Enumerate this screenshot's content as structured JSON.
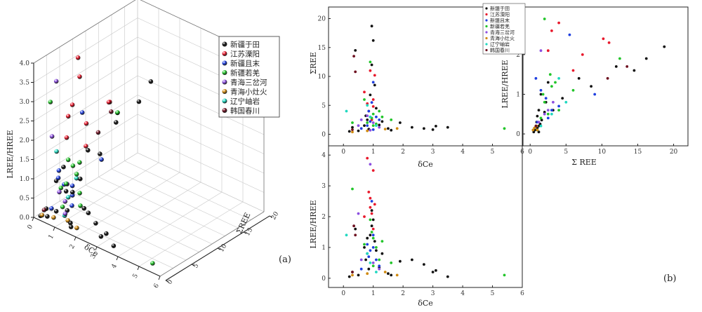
{
  "figure": {
    "panel_a_tag": "(a)",
    "panel_b_tag": "(b)"
  },
  "legend": [
    "新疆于田",
    "江苏溧阳",
    "新疆且末",
    "新疆若羌",
    "青海三岔河",
    "青海小灶火",
    "辽宁岫岩",
    "韩国春川"
  ],
  "colors": [
    "#111111",
    "#e8192c",
    "#1f3fe0",
    "#22c52a",
    "#8c4fe0",
    "#d08a10",
    "#21d8c0",
    "#6e1020"
  ],
  "chart_data": [
    {
      "type": "scatter",
      "title": "",
      "xlabel": "δCe",
      "ylabel": "LREE/HREE",
      "zlabel": "ΣREE",
      "xlim": [
        0,
        6
      ],
      "ylim": [
        0,
        4.0
      ],
      "zlim": [
        0,
        20
      ],
      "xticks": [
        "0",
        "1",
        "2",
        "3",
        "4",
        "5",
        "6"
      ],
      "yticks": [
        "0.0",
        "0.5",
        "1.0",
        "1.5",
        "2.0",
        "2.5",
        "3.0",
        "3.5",
        "4.0"
      ],
      "zticks": [
        "0",
        "5",
        "10",
        "15",
        "20"
      ],
      "legend_position": "top-right",
      "note": "3D scatter of δCe, ΣREE and LREE/HREE for the same samples shown in panel (b)"
    },
    {
      "type": "scatter",
      "subplot": "top-left",
      "xlabel": "δCe",
      "ylabel": "ΣREE",
      "xlim": [
        -0.5,
        6
      ],
      "ylim": [
        -2,
        22
      ],
      "xticks": [
        "0",
        "1",
        "2",
        "3",
        "4",
        "5",
        "6"
      ],
      "yticks": [
        "0",
        "5",
        "10",
        "15",
        "20"
      ]
    },
    {
      "type": "scatter",
      "subplot": "top-right",
      "xlabel": "Σ REE",
      "ylabel": "LREE/HREE",
      "xlim": [
        -1,
        22
      ],
      "ylim": [
        -0.3,
        3.2
      ],
      "xticks": [
        "0",
        "5",
        "10",
        "15",
        "20"
      ],
      "yticks": [
        "0",
        "1",
        "2"
      ]
    },
    {
      "type": "scatter",
      "subplot": "bottom-left",
      "xlabel": "δCe",
      "ylabel": "LREE/HREE",
      "xlim": [
        -0.5,
        6
      ],
      "ylim": [
        -0.3,
        4.3
      ],
      "xticks": [
        "0",
        "1",
        "2",
        "3",
        "4",
        "5",
        "6"
      ],
      "yticks": [
        "0",
        "1",
        "2",
        "3",
        "4"
      ]
    }
  ],
  "samples": [
    {
      "g": 0,
      "ce": 0.95,
      "ree": 18.7,
      "lh": 2.2
    },
    {
      "g": 0,
      "ce": 1.0,
      "ree": 16.2,
      "lh": 1.9
    },
    {
      "g": 0,
      "ce": 0.4,
      "ree": 14.5,
      "lh": 1.6
    },
    {
      "g": 0,
      "ce": 1.9,
      "ree": 2.0,
      "lh": 0.55
    },
    {
      "g": 0,
      "ce": 2.3,
      "ree": 1.2,
      "lh": 0.6
    },
    {
      "g": 0,
      "ce": 2.7,
      "ree": 1.0,
      "lh": 0.45
    },
    {
      "g": 0,
      "ce": 3.0,
      "ree": 0.8,
      "lh": 0.2
    },
    {
      "g": 0,
      "ce": 3.1,
      "ree": 1.4,
      "lh": 0.25
    },
    {
      "g": 0,
      "ce": 3.5,
      "ree": 1.2,
      "lh": 0.05
    },
    {
      "g": 0,
      "ce": 0.3,
      "ree": 1.2,
      "lh": 0.2
    },
    {
      "g": 0,
      "ce": 0.5,
      "ree": 0.6,
      "lh": 0.1
    },
    {
      "g": 0,
      "ce": 0.7,
      "ree": 1.5,
      "lh": 1.0
    },
    {
      "g": 0,
      "ce": 0.8,
      "ree": 2.5,
      "lh": 1.3
    },
    {
      "g": 0,
      "ce": 0.9,
      "ree": 6.8,
      "lh": 1.4
    },
    {
      "g": 0,
      "ce": 1.1,
      "ree": 4.5,
      "lh": 0.9
    },
    {
      "g": 0,
      "ce": 0.85,
      "ree": 0.9,
      "lh": 0.3
    },
    {
      "g": 0,
      "ce": 1.2,
      "ree": 1.6,
      "lh": 0.35
    },
    {
      "g": 0,
      "ce": 1.5,
      "ree": 1.0,
      "lh": 0.15
    },
    {
      "g": 0,
      "ce": 0.2,
      "ree": 0.5,
      "lh": 0.05
    },
    {
      "g": 0,
      "ce": 1.3,
      "ree": 2.2,
      "lh": 0.8
    },
    {
      "g": 0,
      "ce": 0.95,
      "ree": 12.0,
      "lh": 1.7
    },
    {
      "g": 0,
      "ce": 1.05,
      "ree": 8.5,
      "lh": 1.2
    },
    {
      "g": 0,
      "ce": 0.75,
      "ree": 3.2,
      "lh": 0.6
    },
    {
      "g": 0,
      "ce": 1.6,
      "ree": 0.7,
      "lh": 0.1
    },
    {
      "g": 1,
      "ce": 0.8,
      "ree": 5.3,
      "lh": 3.9
    },
    {
      "g": 1,
      "ce": 1.0,
      "ree": 4.8,
      "lh": 3.5
    },
    {
      "g": 1,
      "ce": 0.9,
      "ree": 3.0,
      "lh": 2.6
    },
    {
      "g": 1,
      "ce": 0.95,
      "ree": 2.5,
      "lh": 2.1
    },
    {
      "g": 1,
      "ce": 0.85,
      "ree": 4.0,
      "lh": 2.8
    },
    {
      "g": 1,
      "ce": 1.05,
      "ree": 10.2,
      "lh": 2.4
    },
    {
      "g": 1,
      "ce": 0.7,
      "ree": 7.3,
      "lh": 2.0
    },
    {
      "g": 1,
      "ce": 1.0,
      "ree": 6.0,
      "lh": 1.6
    },
    {
      "g": 1,
      "ce": 0.9,
      "ree": 11.0,
      "lh": 2.3
    },
    {
      "g": 2,
      "ce": 1.0,
      "ree": 0.8,
      "lh": 1.4
    },
    {
      "g": 2,
      "ce": 0.8,
      "ree": 1.5,
      "lh": 1.1
    },
    {
      "g": 2,
      "ce": 0.9,
      "ree": 2.2,
      "lh": 0.9
    },
    {
      "g": 2,
      "ce": 1.1,
      "ree": 3.0,
      "lh": 0.6
    },
    {
      "g": 2,
      "ce": 0.6,
      "ree": 1.0,
      "lh": 0.3
    },
    {
      "g": 2,
      "ce": 1.2,
      "ree": 2.5,
      "lh": 0.4
    },
    {
      "g": 2,
      "ce": 0.95,
      "ree": 5.5,
      "lh": 2.5
    },
    {
      "g": 2,
      "ce": 1.0,
      "ree": 9.0,
      "lh": 1.0
    },
    {
      "g": 2,
      "ce": 0.85,
      "ree": 4.0,
      "lh": 0.7
    },
    {
      "g": 3,
      "ce": 0.9,
      "ree": 12.5,
      "lh": 1.9
    },
    {
      "g": 3,
      "ce": 1.0,
      "ree": 3.5,
      "lh": 1.3
    },
    {
      "g": 3,
      "ce": 0.95,
      "ree": 2.8,
      "lh": 1.5
    },
    {
      "g": 3,
      "ce": 1.1,
      "ree": 1.8,
      "lh": 1.0
    },
    {
      "g": 3,
      "ce": 0.8,
      "ree": 2.0,
      "lh": 0.8
    },
    {
      "g": 3,
      "ce": 1.2,
      "ree": 4.0,
      "lh": 0.6
    },
    {
      "g": 3,
      "ce": 0.3,
      "ree": 2.0,
      "lh": 2.9
    },
    {
      "g": 3,
      "ce": 1.6,
      "ree": 2.5,
      "lh": 0.5
    },
    {
      "g": 3,
      "ce": 0.7,
      "ree": 6.0,
      "lh": 1.1
    },
    {
      "g": 3,
      "ce": 1.0,
      "ree": 1.5,
      "lh": 0.4
    },
    {
      "g": 3,
      "ce": 5.4,
      "ree": 1.0,
      "lh": 0.1
    },
    {
      "g": 3,
      "ce": 1.3,
      "ree": 3.0,
      "lh": 1.2
    },
    {
      "g": 4,
      "ce": 0.9,
      "ree": 0.7,
      "lh": 3.7
    },
    {
      "g": 4,
      "ce": 0.5,
      "ree": 1.5,
      "lh": 2.1
    },
    {
      "g": 4,
      "ce": 1.0,
      "ree": 2.0,
      "lh": 0.5
    },
    {
      "g": 4,
      "ce": 0.8,
      "ree": 3.2,
      "lh": 0.8
    },
    {
      "g": 4,
      "ce": 1.2,
      "ree": 1.2,
      "lh": 0.3
    },
    {
      "g": 4,
      "ce": 0.6,
      "ree": 2.5,
      "lh": 0.6
    },
    {
      "g": 5,
      "ce": 0.3,
      "ree": 0.4,
      "lh": 0.1
    },
    {
      "g": 5,
      "ce": 0.8,
      "ree": 0.6,
      "lh": 0.15
    },
    {
      "g": 5,
      "ce": 1.8,
      "ree": 1.0,
      "lh": 0.1
    },
    {
      "g": 5,
      "ce": 1.4,
      "ree": 0.9,
      "lh": 0.2
    },
    {
      "g": 6,
      "ce": 0.1,
      "ree": 4.0,
      "lh": 1.4
    },
    {
      "g": 6,
      "ce": 0.9,
      "ree": 3.0,
      "lh": 0.5
    },
    {
      "g": 6,
      "ce": 1.1,
      "ree": 1.5,
      "lh": 0.2
    },
    {
      "g": 6,
      "ce": 0.8,
      "ree": 5.0,
      "lh": 0.8
    },
    {
      "g": 7,
      "ce": 0.35,
      "ree": 13.5,
      "lh": 1.7
    },
    {
      "g": 7,
      "ce": 0.4,
      "ree": 10.8,
      "lh": 1.4
    },
    {
      "g": 7,
      "ce": 0.3,
      "ree": 0.8,
      "lh": 0.2
    }
  ]
}
